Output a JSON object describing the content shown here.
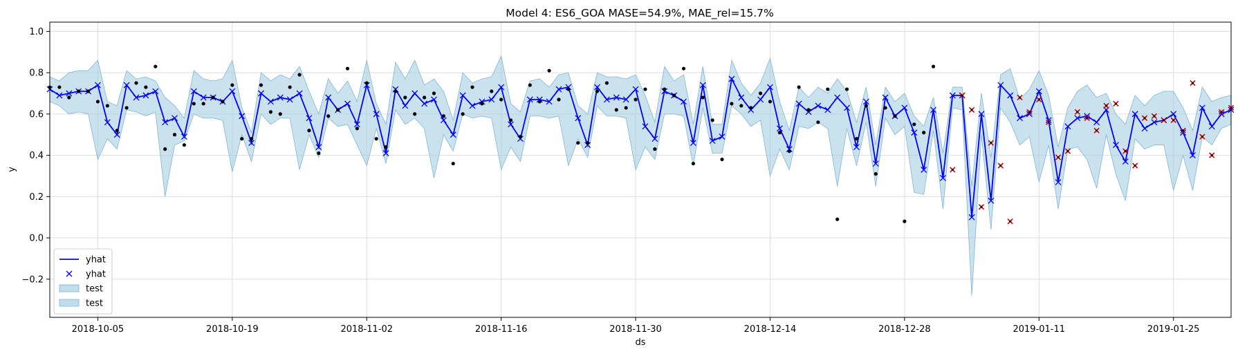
{
  "chart_data": {
    "type": "line",
    "title": "Model 4: ES6_GOA MASE=54.9%, MAE_rel=15.7%",
    "xlabel": "ds",
    "ylabel": "y",
    "x_range": [
      "2018-09-30",
      "2019-01-31"
    ],
    "ylim": [
      -0.385,
      1.045
    ],
    "x_ticks": [
      "2018-10-05",
      "2018-10-19",
      "2018-11-02",
      "2018-11-16",
      "2018-11-30",
      "2018-12-14",
      "2018-12-28",
      "2019-01-11",
      "2019-01-25"
    ],
    "y_ticks": [
      -0.2,
      0.0,
      0.2,
      0.4,
      0.6,
      0.8,
      1.0
    ],
    "grid": true,
    "legend_position": "lower-left",
    "legend": [
      {
        "label": "yhat",
        "kind": "line"
      },
      {
        "label": "yhat",
        "kind": "marker"
      },
      {
        "label": "test",
        "kind": "band"
      },
      {
        "label": "test",
        "kind": "band"
      }
    ],
    "colors": {
      "yhat": "#0000ff",
      "band": "#a6cfe3",
      "band_edge": "#7fb5d5",
      "actual": "#000000",
      "test_actual": "#cc0000",
      "grid": "#dddddd"
    },
    "start_date": "2018-09-30",
    "series": [
      {
        "name": "yhat",
        "style": "line+marker",
        "values": [
          0.72,
          0.69,
          0.7,
          0.71,
          0.71,
          0.74,
          0.56,
          0.5,
          0.74,
          0.68,
          0.69,
          0.71,
          0.56,
          0.58,
          0.49,
          0.71,
          0.68,
          0.68,
          0.66,
          0.71,
          0.59,
          0.46,
          0.7,
          0.66,
          0.68,
          0.67,
          0.7,
          0.58,
          0.44,
          0.68,
          0.62,
          0.65,
          0.55,
          0.74,
          0.6,
          0.41,
          0.72,
          0.64,
          0.7,
          0.65,
          0.67,
          0.57,
          0.5,
          0.69,
          0.64,
          0.66,
          0.67,
          0.73,
          0.55,
          0.48,
          0.67,
          0.67,
          0.66,
          0.72,
          0.73,
          0.58,
          0.45,
          0.73,
          0.67,
          0.68,
          0.67,
          0.72,
          0.54,
          0.48,
          0.71,
          0.69,
          0.66,
          0.46,
          0.74,
          0.47,
          0.49,
          0.77,
          0.68,
          0.62,
          0.67,
          0.73,
          0.53,
          0.43,
          0.65,
          0.61,
          0.64,
          0.62,
          0.68,
          0.63,
          0.44,
          0.66,
          0.36,
          0.68,
          0.59,
          0.63,
          0.51,
          0.33,
          0.62,
          0.29,
          0.69,
          0.69,
          0.1,
          0.6,
          0.18,
          0.74,
          0.69,
          0.58,
          0.6,
          0.71,
          0.57,
          0.27,
          0.54,
          0.58,
          0.59,
          0.56,
          0.62,
          0.45,
          0.37,
          0.6,
          0.53,
          0.56,
          0.57,
          0.6,
          0.51,
          0.4,
          0.63,
          0.54,
          0.6,
          0.62
        ]
      },
      {
        "name": "interval_upper",
        "values": [
          0.78,
          0.76,
          0.8,
          0.81,
          0.81,
          0.86,
          0.66,
          0.64,
          0.81,
          0.77,
          0.78,
          0.76,
          0.68,
          0.64,
          0.58,
          0.81,
          0.77,
          0.76,
          0.77,
          0.86,
          0.63,
          0.51,
          0.8,
          0.76,
          0.79,
          0.77,
          0.83,
          0.71,
          0.6,
          0.77,
          0.7,
          0.76,
          0.66,
          0.86,
          0.65,
          0.55,
          0.85,
          0.77,
          0.86,
          0.74,
          0.77,
          0.71,
          0.57,
          0.8,
          0.75,
          0.77,
          0.78,
          0.88,
          0.65,
          0.61,
          0.76,
          0.77,
          0.73,
          0.79,
          0.8,
          0.64,
          0.6,
          0.8,
          0.78,
          0.78,
          0.77,
          0.79,
          0.69,
          0.56,
          0.83,
          0.76,
          0.79,
          0.55,
          0.83,
          0.55,
          0.55,
          0.86,
          0.75,
          0.69,
          0.75,
          0.87,
          0.66,
          0.52,
          0.73,
          0.68,
          0.73,
          0.7,
          0.77,
          0.71,
          0.56,
          0.73,
          0.45,
          0.73,
          0.66,
          0.7,
          0.59,
          0.54,
          0.68,
          0.41,
          0.73,
          0.73,
          0.25,
          0.7,
          0.39,
          0.79,
          0.82,
          0.67,
          0.72,
          0.81,
          0.69,
          0.44,
          0.63,
          0.71,
          0.74,
          0.68,
          0.7,
          0.6,
          0.55,
          0.69,
          0.64,
          0.69,
          0.71,
          0.71,
          0.63,
          0.52,
          0.73,
          0.66,
          0.68,
          0.69
        ]
      },
      {
        "name": "interval_lower",
        "values": [
          0.66,
          0.64,
          0.6,
          0.61,
          0.6,
          0.38,
          0.48,
          0.43,
          0.62,
          0.61,
          0.59,
          0.61,
          0.2,
          0.45,
          0.47,
          0.6,
          0.58,
          0.58,
          0.57,
          0.32,
          0.5,
          0.37,
          0.6,
          0.55,
          0.58,
          0.58,
          0.33,
          0.5,
          0.39,
          0.58,
          0.54,
          0.55,
          0.45,
          0.35,
          0.53,
          0.36,
          0.62,
          0.55,
          0.58,
          0.53,
          0.29,
          0.5,
          0.42,
          0.6,
          0.58,
          0.59,
          0.58,
          0.33,
          0.44,
          0.37,
          0.59,
          0.59,
          0.58,
          0.59,
          0.35,
          0.48,
          0.39,
          0.64,
          0.59,
          0.59,
          0.58,
          0.33,
          0.44,
          0.38,
          0.6,
          0.6,
          0.59,
          0.35,
          0.63,
          0.41,
          0.41,
          0.64,
          0.6,
          0.54,
          0.57,
          0.3,
          0.43,
          0.33,
          0.54,
          0.53,
          0.56,
          0.53,
          0.25,
          0.53,
          0.35,
          0.56,
          0.25,
          0.58,
          0.5,
          0.54,
          0.22,
          0.21,
          0.52,
          0.14,
          0.63,
          0.62,
          -0.28,
          0.5,
          0.04,
          0.63,
          0.56,
          0.45,
          0.49,
          0.27,
          0.45,
          0.14,
          0.43,
          0.44,
          0.38,
          0.24,
          0.5,
          0.31,
          0.18,
          0.48,
          0.43,
          0.45,
          0.45,
          0.23,
          0.4,
          0.23,
          0.49,
          0.45,
          0.53,
          0.55
        ]
      },
      {
        "name": "actual",
        "style": "dot",
        "start_date": "2018-09-30",
        "values": [
          0.73,
          0.73,
          0.68,
          0.71,
          0.71,
          0.66,
          0.64,
          0.52,
          0.63,
          0.75,
          0.73,
          0.83,
          0.43,
          0.5,
          0.45,
          0.65,
          0.65,
          0.68,
          0.66,
          0.74,
          0.48,
          0.48,
          0.74,
          0.61,
          0.6,
          0.73,
          0.79,
          0.52,
          0.41,
          0.59,
          0.62,
          0.82,
          0.53,
          0.75,
          0.48,
          0.44,
          0.71,
          0.68,
          0.6,
          0.68,
          0.7,
          0.59,
          0.36,
          0.6,
          0.73,
          0.65,
          0.71,
          0.67,
          0.57,
          0.49,
          0.74,
          0.66,
          0.81,
          0.67,
          0.72,
          0.46,
          0.46,
          0.71,
          0.75,
          0.62,
          0.63,
          0.67,
          0.72,
          0.43,
          0.72,
          0.69,
          0.82,
          0.36,
          0.68,
          0.57,
          0.38,
          0.65,
          0.64,
          0.63,
          0.7,
          0.66,
          0.51,
          0.42,
          0.73,
          0.62,
          0.56,
          0.72,
          0.09,
          0.72,
          0.48,
          0.64,
          0.31,
          0.63,
          0.59,
          0.08,
          0.55,
          0.51,
          0.83
        ]
      },
      {
        "name": "test_actual",
        "style": "red-x",
        "start_date": "2019-01-02",
        "values": [
          0.33,
          0.69,
          0.62,
          0.15,
          0.46,
          0.35,
          0.08,
          0.68,
          0.61,
          0.67,
          0.56,
          0.39,
          0.42,
          0.61,
          0.58,
          0.52,
          0.64,
          0.65,
          0.42,
          0.35,
          0.58,
          0.59,
          0.57,
          0.57,
          0.52,
          0.75,
          0.49,
          0.4,
          0.61,
          0.63,
          0.59,
          0.62
        ]
      }
    ]
  }
}
